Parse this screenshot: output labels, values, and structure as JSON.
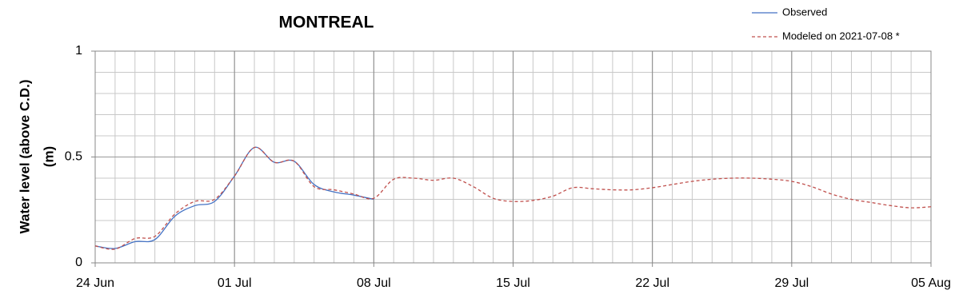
{
  "chart_data": {
    "type": "line",
    "title": "MONTREAL",
    "ylabel_lines": [
      "Water level (above C.D.)",
      "(m)"
    ],
    "x": [
      "24 Jun",
      "25 Jun",
      "26 Jun",
      "27 Jun",
      "28 Jun",
      "29 Jun",
      "30 Jun",
      "01 Jul",
      "02 Jul",
      "03 Jul",
      "04 Jul",
      "05 Jul",
      "06 Jul",
      "07 Jul",
      "08 Jul",
      "09 Jul",
      "10 Jul",
      "11 Jul",
      "12 Jul",
      "13 Jul",
      "14 Jul",
      "15 Jul",
      "16 Jul",
      "17 Jul",
      "18 Jul",
      "19 Jul",
      "20 Jul",
      "21 Jul",
      "22 Jul",
      "23 Jul",
      "24 Jul",
      "25 Jul",
      "26 Jul",
      "27 Jul",
      "28 Jul",
      "29 Jul",
      "30 Jul",
      "31 Jul",
      "01 Aug",
      "02 Aug",
      "03 Aug",
      "04 Aug",
      "05 Aug"
    ],
    "series": [
      {
        "name": "Observed",
        "color": "#4472c4",
        "dashed": false,
        "values": [
          0.08,
          0.068,
          0.1,
          0.11,
          0.22,
          0.27,
          0.29,
          0.41,
          0.545,
          0.475,
          0.48,
          0.37,
          0.335,
          0.32,
          0.3,
          null,
          null,
          null,
          null,
          null,
          null,
          null,
          null,
          null,
          null,
          null,
          null,
          null,
          null,
          null,
          null,
          null,
          null,
          null,
          null,
          null,
          null,
          null,
          null,
          null,
          null,
          null,
          null
        ]
      },
      {
        "name": "Modeled on 2021-07-08 *",
        "color": "#c0504d",
        "dashed": true,
        "values": [
          0.08,
          0.065,
          0.115,
          0.125,
          0.23,
          0.29,
          0.3,
          0.41,
          0.545,
          0.475,
          0.48,
          0.36,
          0.345,
          0.325,
          0.305,
          0.395,
          0.4,
          0.39,
          0.4,
          0.36,
          0.305,
          0.29,
          0.295,
          0.315,
          0.355,
          0.35,
          0.345,
          0.345,
          0.355,
          0.37,
          0.385,
          0.395,
          0.4,
          0.4,
          0.395,
          0.385,
          0.36,
          0.325,
          0.3,
          0.285,
          0.27,
          0.26,
          0.265
        ]
      }
    ],
    "xlim": [
      "24 Jun",
      "05 Aug"
    ],
    "xticks": [
      "24 Jun",
      "01 Jul",
      "08 Jul",
      "15 Jul",
      "22 Jul",
      "29 Jul",
      "05 Aug"
    ],
    "ylim": [
      0,
      1
    ],
    "yticks": [
      0,
      0.5,
      1
    ],
    "yminorticks": [
      0.1,
      0.2,
      0.3,
      0.4,
      0.6,
      0.7,
      0.8,
      0.9
    ],
    "grid": true,
    "minor_grid": true,
    "legend": "top-right"
  }
}
